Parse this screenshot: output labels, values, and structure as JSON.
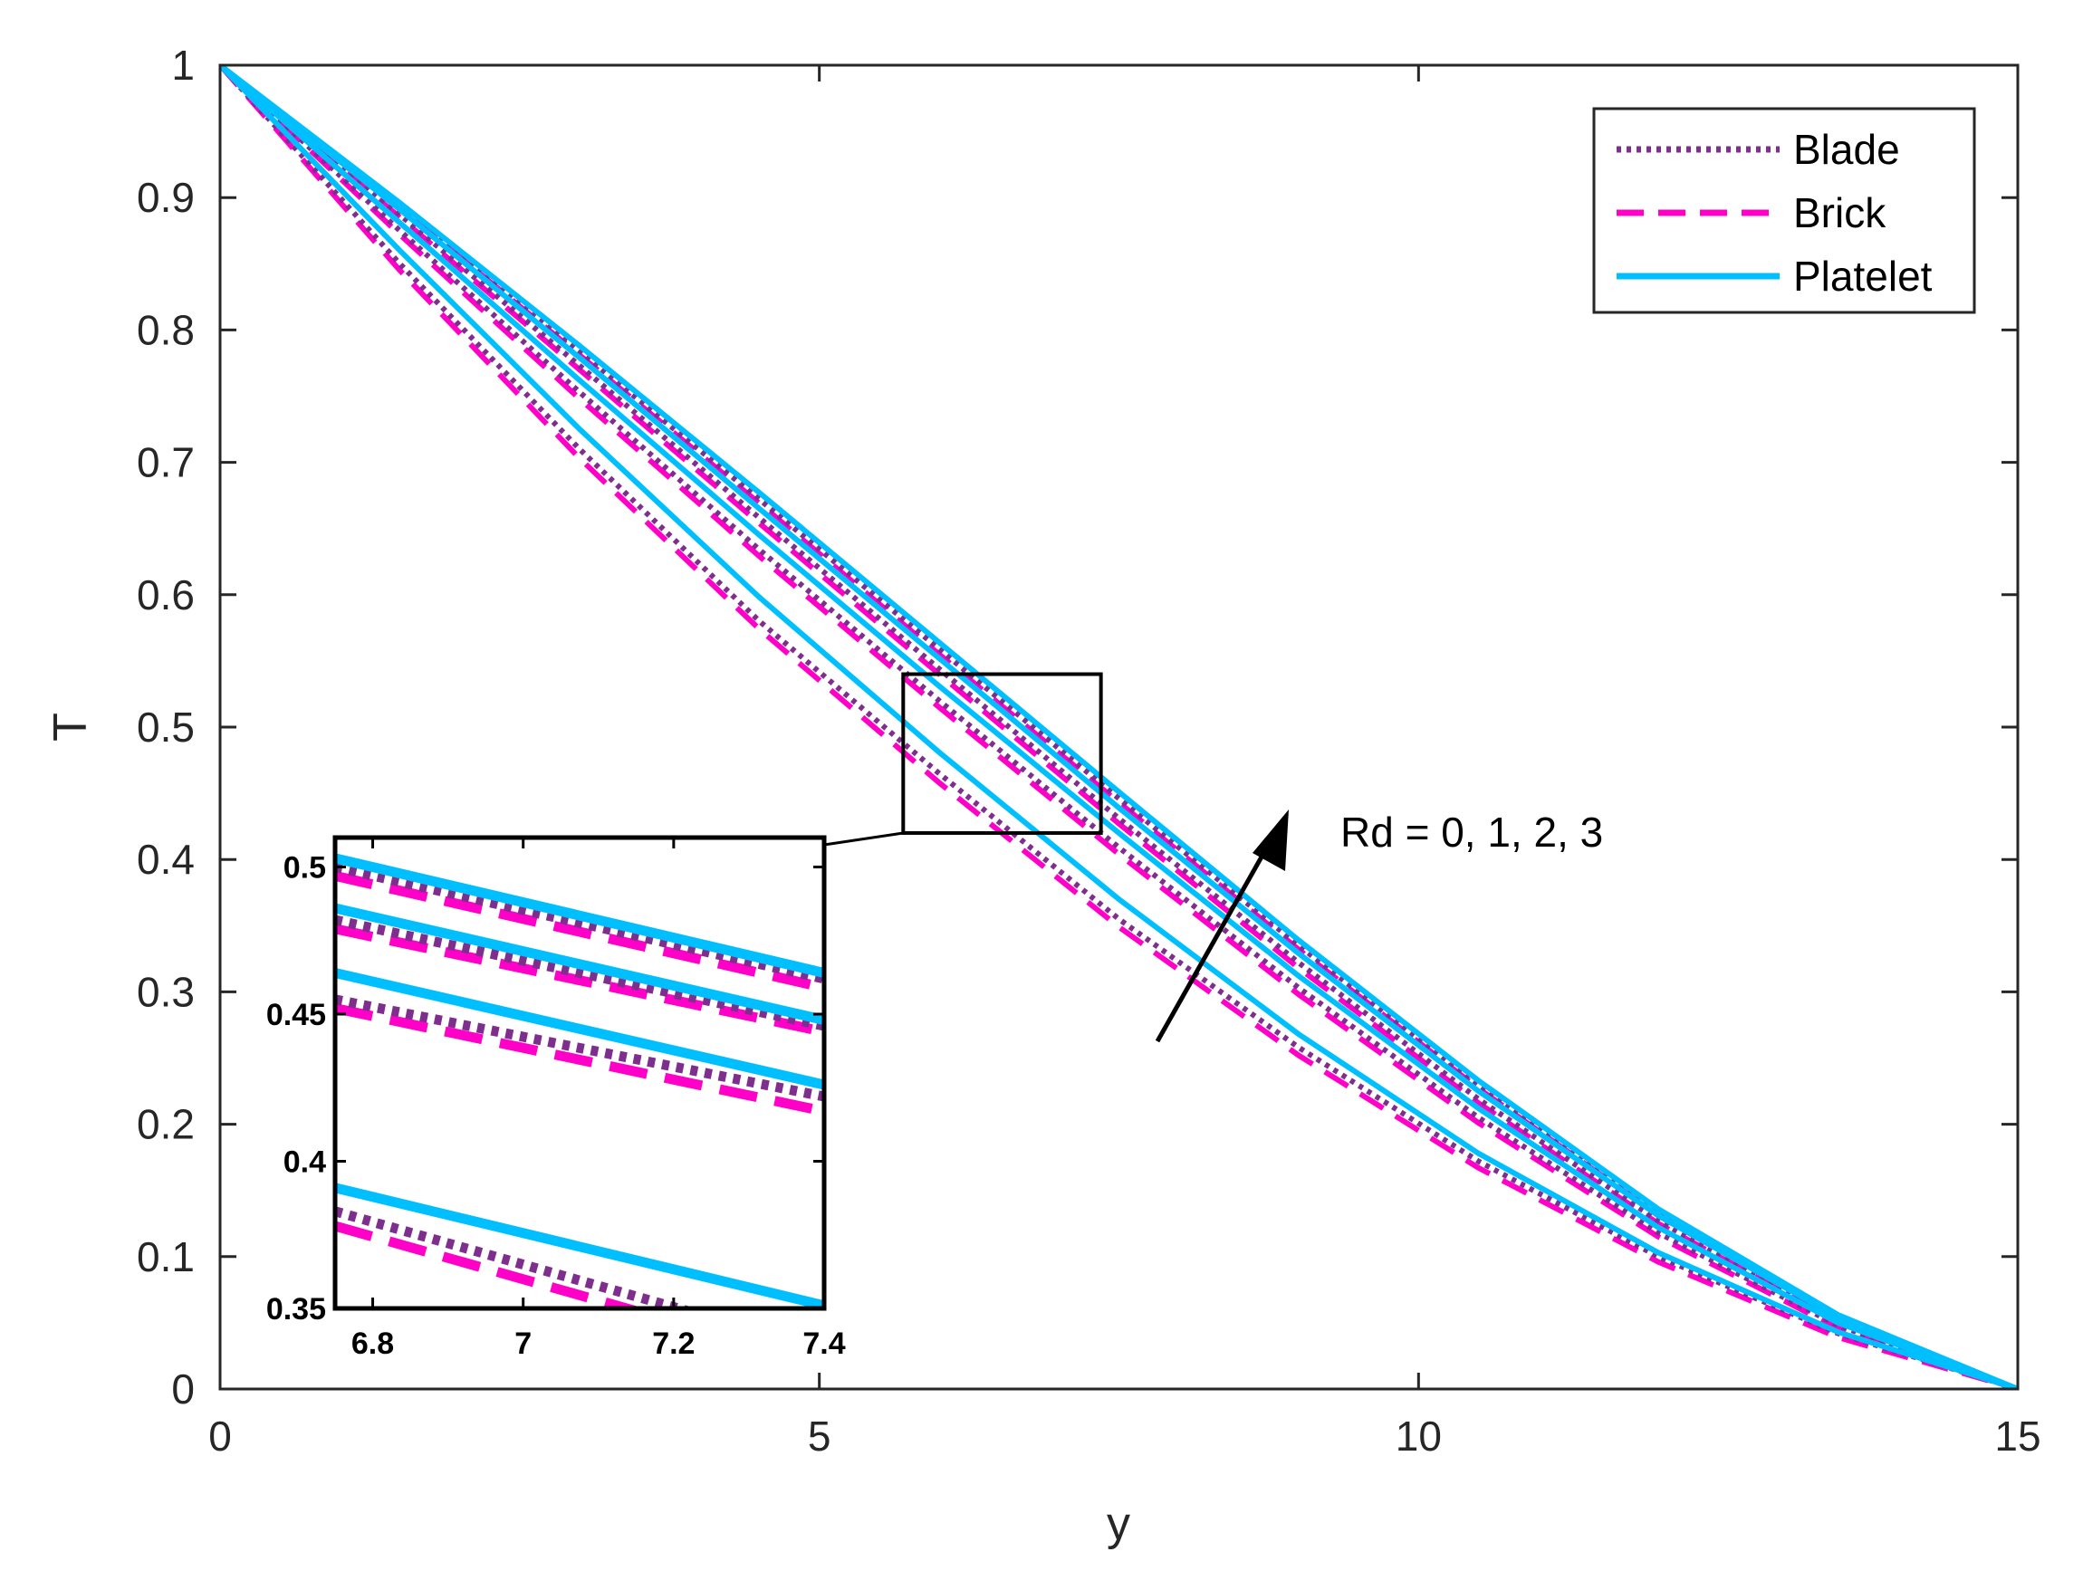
{
  "chart_data": {
    "type": "line",
    "xlabel": "y",
    "ylabel": "T",
    "xlim": [
      0,
      15
    ],
    "ylim": [
      0,
      1
    ],
    "xticks": [
      0,
      5,
      10,
      15
    ],
    "xtick_labels": [
      "0",
      "5",
      "10",
      "15"
    ],
    "yticks": [
      0,
      0.1,
      0.2,
      0.3,
      0.4,
      0.5,
      0.6,
      0.7,
      0.8,
      0.9,
      1
    ],
    "ytick_labels": [
      "0",
      "0.1",
      "0.2",
      "0.3",
      "0.4",
      "0.5",
      "0.6",
      "0.7",
      "0.8",
      "0.9",
      "1"
    ],
    "grid": false,
    "legend_position": "top-right",
    "legend": [
      {
        "label": "Blade",
        "color": "#7E2F8E",
        "style": "dotted"
      },
      {
        "label": "Brick",
        "color": "#FF00C8",
        "style": "dashed"
      },
      {
        "label": "Platelet",
        "color": "#00BFFF",
        "style": "solid"
      }
    ],
    "annotation": "Rd = 0, 1, 2, 3",
    "x": [
      0,
      1.5,
      3,
      4.5,
      6,
      7.5,
      9,
      10.5,
      12,
      13.5,
      15
    ],
    "series": [
      {
        "name": "Blade",
        "Rd": 0,
        "values": [
          1,
          0.85,
          0.71,
          0.58,
          0.465,
          0.355,
          0.258,
          0.172,
          0.1,
          0.042,
          0
        ]
      },
      {
        "name": "Brick",
        "Rd": 0,
        "values": [
          1,
          0.845,
          0.703,
          0.574,
          0.458,
          0.349,
          0.252,
          0.167,
          0.096,
          0.039,
          0
        ]
      },
      {
        "name": "Platelet",
        "Rd": 0,
        "values": [
          1,
          0.86,
          0.725,
          0.598,
          0.481,
          0.37,
          0.268,
          0.178,
          0.103,
          0.043,
          0
        ]
      },
      {
        "name": "Blade",
        "Rd": 1,
        "values": [
          1,
          0.875,
          0.753,
          0.634,
          0.52,
          0.409,
          0.303,
          0.205,
          0.118,
          0.048,
          0
        ]
      },
      {
        "name": "Brick",
        "Rd": 1,
        "values": [
          1,
          0.872,
          0.748,
          0.629,
          0.515,
          0.404,
          0.298,
          0.201,
          0.115,
          0.046,
          0
        ]
      },
      {
        "name": "Platelet",
        "Rd": 1,
        "values": [
          1,
          0.881,
          0.762,
          0.645,
          0.531,
          0.42,
          0.312,
          0.212,
          0.122,
          0.05,
          0
        ]
      },
      {
        "name": "Blade",
        "Rd": 2,
        "values": [
          1,
          0.887,
          0.773,
          0.658,
          0.544,
          0.431,
          0.322,
          0.219,
          0.127,
          0.052,
          0
        ]
      },
      {
        "name": "Brick",
        "Rd": 2,
        "values": [
          1,
          0.885,
          0.77,
          0.654,
          0.54,
          0.427,
          0.318,
          0.216,
          0.125,
          0.051,
          0
        ]
      },
      {
        "name": "Platelet",
        "Rd": 2,
        "values": [
          1,
          0.891,
          0.779,
          0.665,
          0.552,
          0.439,
          0.329,
          0.225,
          0.131,
          0.054,
          0
        ]
      },
      {
        "name": "Blade",
        "Rd": 3,
        "values": [
          1,
          0.894,
          0.784,
          0.672,
          0.559,
          0.446,
          0.335,
          0.229,
          0.133,
          0.055,
          0
        ]
      },
      {
        "name": "Brick",
        "Rd": 3,
        "values": [
          1,
          0.892,
          0.781,
          0.669,
          0.555,
          0.443,
          0.332,
          0.227,
          0.131,
          0.054,
          0
        ]
      },
      {
        "name": "Platelet",
        "Rd": 3,
        "values": [
          1,
          0.896,
          0.788,
          0.677,
          0.564,
          0.451,
          0.339,
          0.233,
          0.136,
          0.056,
          0
        ]
      }
    ],
    "inset": {
      "xlim": [
        6.75,
        7.4
      ],
      "ylim": [
        0.35,
        0.51
      ],
      "xticks": [
        6.8,
        7,
        7.2,
        7.4
      ],
      "xtick_labels": [
        "6.8",
        "7",
        "7.2",
        "7.4"
      ],
      "yticks": [
        0.35,
        0.4,
        0.45,
        0.5
      ],
      "ytick_labels": [
        "0.35",
        "0.4",
        "0.45",
        "0.5"
      ],
      "series": [
        {
          "name": "Blade",
          "Rd": 0,
          "points": [
            [
              6.75,
              0.383
            ],
            [
              7.4,
              0.336
            ]
          ]
        },
        {
          "name": "Brick",
          "Rd": 0,
          "points": [
            [
              6.75,
              0.378
            ],
            [
              7.4,
              0.331
            ]
          ]
        },
        {
          "name": "Platelet",
          "Rd": 0,
          "points": [
            [
              6.75,
              0.391
            ],
            [
              7.4,
              0.351
            ]
          ]
        },
        {
          "name": "Blade",
          "Rd": 1,
          "points": [
            [
              6.75,
              0.455
            ],
            [
              7.4,
              0.422
            ]
          ]
        },
        {
          "name": "Brick",
          "Rd": 1,
          "points": [
            [
              6.75,
              0.452
            ],
            [
              7.4,
              0.417
            ]
          ]
        },
        {
          "name": "Platelet",
          "Rd": 1,
          "points": [
            [
              6.75,
              0.464
            ],
            [
              7.4,
              0.426
            ]
          ]
        },
        {
          "name": "Blade",
          "Rd": 2,
          "points": [
            [
              6.75,
              0.482
            ],
            [
              7.4,
              0.446
            ]
          ]
        },
        {
          "name": "Brick",
          "Rd": 2,
          "points": [
            [
              6.75,
              0.479
            ],
            [
              7.4,
              0.444
            ]
          ]
        },
        {
          "name": "Platelet",
          "Rd": 2,
          "points": [
            [
              6.75,
              0.486
            ],
            [
              7.4,
              0.448
            ]
          ]
        },
        {
          "name": "Blade",
          "Rd": 3,
          "points": [
            [
              6.75,
              0.5
            ],
            [
              7.4,
              0.462
            ]
          ]
        },
        {
          "name": "Brick",
          "Rd": 3,
          "points": [
            [
              6.75,
              0.497
            ],
            [
              7.4,
              0.459
            ]
          ]
        },
        {
          "name": "Platelet",
          "Rd": 3,
          "points": [
            [
              6.75,
              0.503
            ],
            [
              7.4,
              0.464
            ]
          ]
        }
      ]
    },
    "zoom_region": {
      "xlim": [
        5.7,
        7.35
      ],
      "ylim": [
        0.42,
        0.54
      ]
    }
  }
}
